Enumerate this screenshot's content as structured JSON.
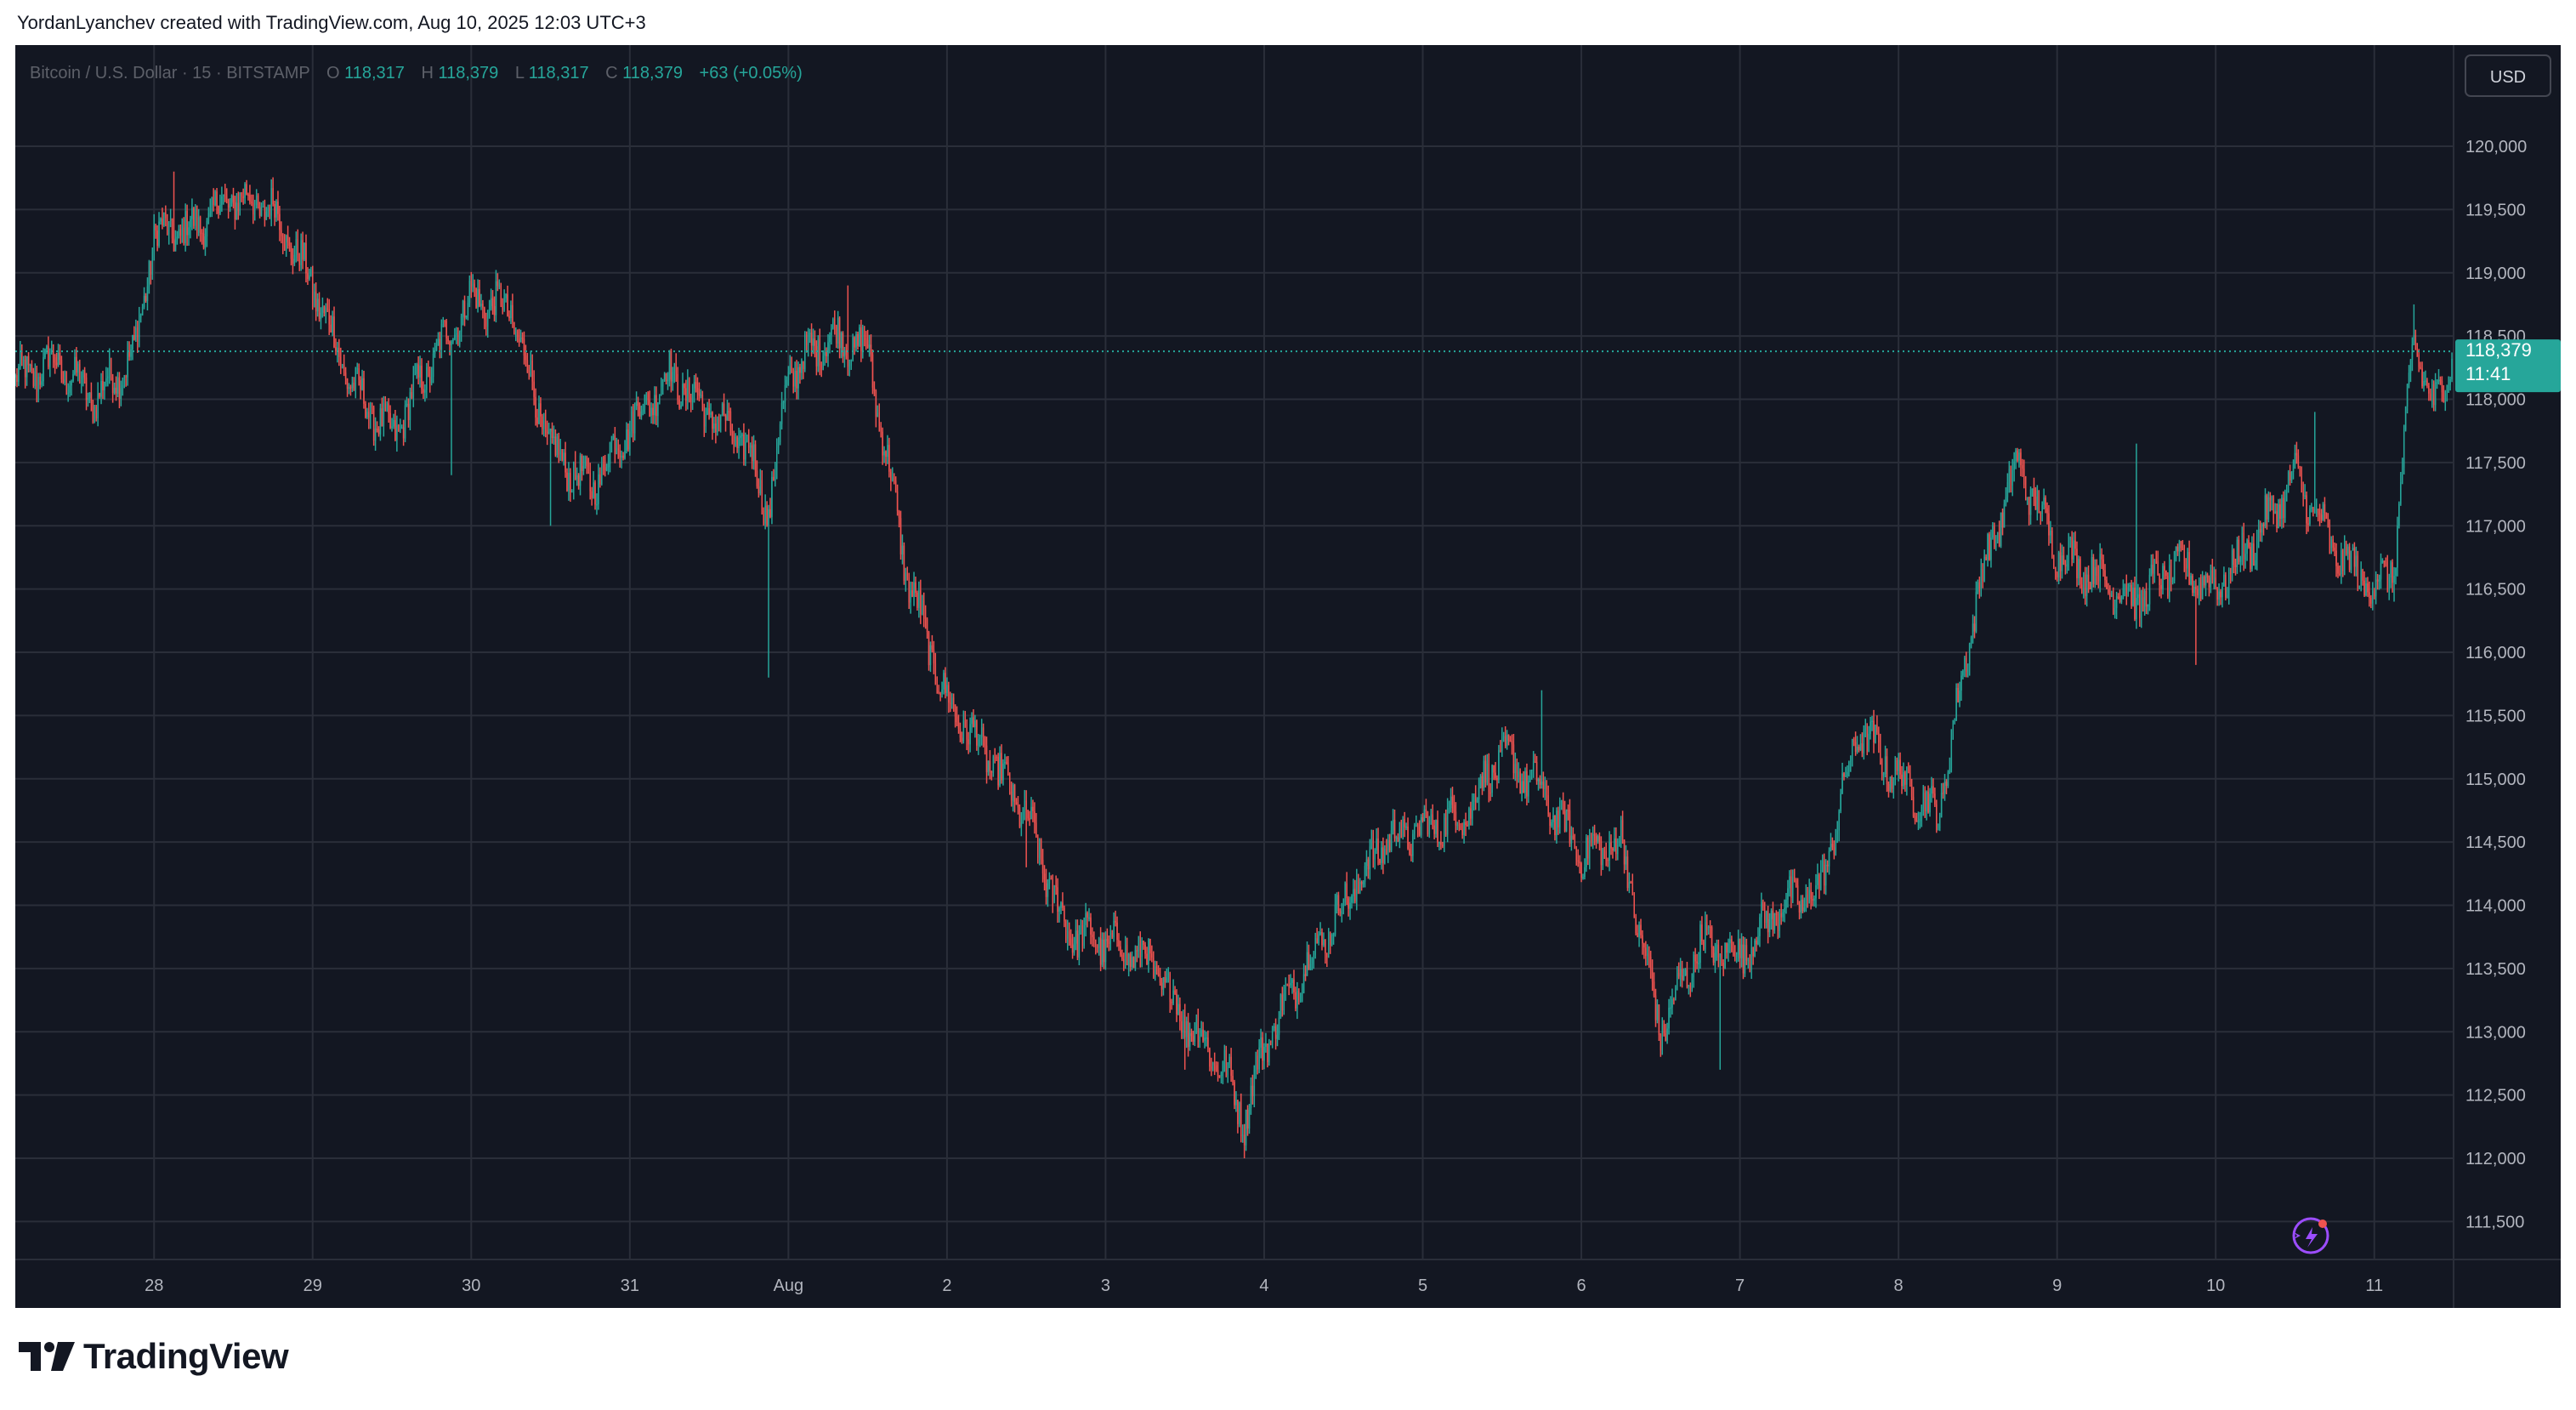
{
  "header": {
    "credit": "YordanLyanchev created with TradingView.com, Aug 10, 2025 12:03 UTC+3"
  },
  "footer": {
    "brand": "TradingView"
  },
  "colors": {
    "background": "#131722",
    "grid": "#2a2e39",
    "text": "#b2b5be",
    "up": "#26a69a",
    "down": "#ef5350",
    "price_badge": "#26a69a"
  },
  "legend": {
    "symbol": "Bitcoin / U.S. Dollar",
    "interval": "15",
    "exchange": "BITSTAMP",
    "o_label": "O",
    "o": "118,317",
    "h_label": "H",
    "h": "118,379",
    "l_label": "L",
    "l": "118,317",
    "c_label": "C",
    "c": "118,379",
    "change": "+63 (+0.05%)"
  },
  "scale": {
    "currency": "USD"
  },
  "last_price": {
    "value": "118,379",
    "countdown": "11:41"
  },
  "chart_data": {
    "type": "candlestick",
    "title": "Bitcoin / U.S. Dollar · 15 · BITSTAMP",
    "timeframe": "15",
    "ylim": [
      111200,
      120800
    ],
    "y_ticks": [
      111500,
      112000,
      112500,
      113000,
      113500,
      114000,
      114500,
      115000,
      115500,
      116000,
      116500,
      117000,
      117500,
      118000,
      118500,
      119000,
      119500,
      120000
    ],
    "y_tick_labels": [
      "111,500",
      "112,000",
      "112,500",
      "113,000",
      "113,500",
      "114,000",
      "114,500",
      "115,000",
      "115,500",
      "116,000",
      "116,500",
      "117,000",
      "117,500",
      "118,000",
      "118,500",
      "119,000",
      "119,500",
      "120,000"
    ],
    "x_range": [
      "Jul 27 03:00",
      "Aug 11 12:00"
    ],
    "x_ticks": [
      "Jul 28",
      "Jul 29",
      "Jul 30",
      "Jul 31",
      "Aug 1",
      "Aug 2",
      "Aug 3",
      "Aug 4",
      "Aug 5",
      "Aug 6",
      "Aug 7",
      "Aug 8",
      "Aug 9",
      "Aug 10",
      "Aug 11"
    ],
    "x_tick_labels": [
      "28",
      "29",
      "30",
      "31",
      "Aug",
      "2",
      "3",
      "4",
      "5",
      "6",
      "7",
      "8",
      "9",
      "10",
      "11"
    ],
    "price_path": [
      [
        "Jul 27 03:00",
        118150
      ],
      [
        "Jul 27 09:00",
        118300
      ],
      [
        "Jul 27 15:00",
        118000
      ],
      [
        "Jul 27 21:00",
        118350
      ],
      [
        "Jul 28 00:00",
        119300
      ],
      [
        "Jul 28 06:00",
        119350
      ],
      [
        "Jul 28 12:00",
        119600
      ],
      [
        "Jul 28 18:00",
        119500
      ],
      [
        "Jul 29 00:00",
        118900
      ],
      [
        "Jul 29 06:00",
        118100
      ],
      [
        "Jul 29 12:00",
        117700
      ],
      [
        "Jul 29 18:00",
        118300
      ],
      [
        "Jul 30 00:00",
        118800
      ],
      [
        "Jul 30 06:00",
        118700
      ],
      [
        "Jul 30 12:00",
        117600
      ],
      [
        "Jul 30 18:00",
        117300
      ],
      [
        "Jul 31 00:00",
        117800
      ],
      [
        "Jul 31 06:00",
        118200
      ],
      [
        "Jul 31 12:00",
        117900
      ],
      [
        "Jul 31 18:00",
        117600
      ],
      [
        "Jul 31 21:00",
        117100
      ],
      [
        "Aug 1 00:00",
        118200
      ],
      [
        "Aug 1 06:00",
        118500
      ],
      [
        "Aug 1 12:00",
        118400
      ],
      [
        "Aug 1 18:00",
        116600
      ],
      [
        "Aug 2 00:00",
        115600
      ],
      [
        "Aug 2 06:00",
        115200
      ],
      [
        "Aug 2 12:00",
        114700
      ],
      [
        "Aug 2 18:00",
        113800
      ],
      [
        "Aug 3 00:00",
        113700
      ],
      [
        "Aug 3 06:00",
        113600
      ],
      [
        "Aug 3 12:00",
        113100
      ],
      [
        "Aug 3 18:00",
        112700
      ],
      [
        "Aug 3 21:00",
        112300
      ],
      [
        "Aug 4 00:00",
        112900
      ],
      [
        "Aug 4 06:00",
        113500
      ],
      [
        "Aug 4 12:00",
        114000
      ],
      [
        "Aug 4 18:00",
        114500
      ],
      [
        "Aug 5 00:00",
        114600
      ],
      [
        "Aug 5 06:00",
        114700
      ],
      [
        "Aug 5 12:00",
        115200
      ],
      [
        "Aug 5 18:00",
        114900
      ],
      [
        "Aug 6 00:00",
        114400
      ],
      [
        "Aug 6 06:00",
        114500
      ],
      [
        "Aug 6 12:00",
        113000
      ],
      [
        "Aug 6 18:00",
        113700
      ],
      [
        "Aug 7 00:00",
        113600
      ],
      [
        "Aug 7 06:00",
        114000
      ],
      [
        "Aug 7 12:00",
        114100
      ],
      [
        "Aug 7 18:00",
        115400
      ],
      [
        "Aug 8 00:00",
        115000
      ],
      [
        "Aug 8 06:00",
        114700
      ],
      [
        "Aug 8 12:00",
        116500
      ],
      [
        "Aug 8 18:00",
        117500
      ],
      [
        "Aug 9 00:00",
        116800
      ],
      [
        "Aug 9 06:00",
        116600
      ],
      [
        "Aug 9 12:00",
        116400
      ],
      [
        "Aug 9 18:00",
        116700
      ],
      [
        "Aug 10 00:00",
        116500
      ],
      [
        "Aug 10 06:00",
        116900
      ],
      [
        "Aug 10 12:00",
        117400
      ],
      [
        "Aug 10 18:00",
        116800
      ],
      [
        "Aug 11 00:00",
        116500
      ],
      [
        "Aug 11 03:00",
        116700
      ],
      [
        "Aug 11 06:00",
        118500
      ],
      [
        "Aug 11 09:00",
        117900
      ],
      [
        "Aug 11 12:00",
        118379
      ]
    ],
    "wicks": [
      [
        "Jul 28 03:00",
        119800
      ],
      [
        "Jul 29 21:00",
        117400
      ],
      [
        "Jul 30 12:00",
        117000
      ],
      [
        "Jul 31 21:00",
        115800
      ],
      [
        "Aug 1 09:00",
        118900
      ],
      [
        "Aug 2 12:00",
        114300
      ],
      [
        "Aug 3 12:00",
        112700
      ],
      [
        "Aug 3 21:00",
        112000
      ],
      [
        "Aug 5 18:00",
        115700
      ],
      [
        "Aug 6 21:00",
        112700
      ],
      [
        "Aug 8 09:00",
        115700
      ],
      [
        "Aug 9 12:00",
        117650
      ],
      [
        "Aug 9 21:00",
        115900
      ],
      [
        "Aug 10 15:00",
        117900
      ],
      [
        "Aug 11 03:00",
        116400
      ],
      [
        "Aug 11 06:00",
        118750
      ]
    ]
  }
}
